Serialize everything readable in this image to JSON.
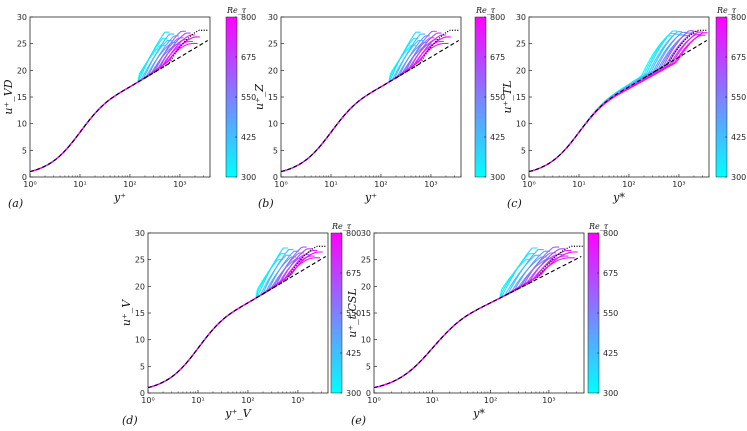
{
  "colors": {
    "low": "#00ffff",
    "high": "#ff00ff",
    "axis": "#262626",
    "reference_line": "#000000"
  },
  "chart_data": [
    {
      "type": "line",
      "panel_label": "(a)",
      "xlabel": "y⁺",
      "ylabel": "u⁺_VD",
      "xscale": "log",
      "xlim": [
        1,
        4000
      ],
      "ylim": [
        0,
        30
      ],
      "yticks": [
        "0",
        "5",
        "10",
        "15",
        "20",
        "25",
        "30"
      ],
      "xticks": [
        "10⁰",
        "10¹",
        "10²",
        "10³"
      ],
      "reference": {
        "dashed": "log-law + fit",
        "dotted": "incompressible DNS profile"
      },
      "series": {
        "count": 16,
        "re_tau_range": [
          300,
          800
        ],
        "wake_peak_range": [
          23.5,
          27.5
        ],
        "wake_peak_x": [
          400,
          2000
        ],
        "spread_start_x": 150,
        "spread_sign": 1
      },
      "colorbar": {
        "title": "Re_τ",
        "ticks": [
          "800",
          "675",
          "550",
          "425",
          "300"
        ],
        "range": [
          300,
          800
        ]
      }
    },
    {
      "type": "line",
      "panel_label": "(b)",
      "xlabel": "y⁺",
      "ylabel": "u⁺_Z",
      "xscale": "log",
      "xlim": [
        1,
        4000
      ],
      "ylim": [
        0,
        30
      ],
      "yticks": [
        "0",
        "5",
        "10",
        "15",
        "20",
        "25",
        "30"
      ],
      "xticks": [
        "10⁰",
        "10¹",
        "10²",
        "10³"
      ],
      "reference": {
        "dashed": "log-law + fit",
        "dotted": "incompressible DNS profile"
      },
      "series": {
        "count": 16,
        "re_tau_range": [
          300,
          800
        ],
        "wake_peak_range": [
          23.5,
          27.5
        ],
        "wake_peak_x": [
          400,
          2000
        ],
        "spread_start_x": 150,
        "spread_sign": 1
      },
      "colorbar": {
        "title": "Re_τ",
        "ticks": [
          "800",
          "675",
          "550",
          "425",
          "300"
        ],
        "range": [
          300,
          800
        ]
      }
    },
    {
      "type": "line",
      "panel_label": "(c)",
      "xlabel": "y*",
      "ylabel": "u⁺_TL",
      "xscale": "log",
      "xlim": [
        1,
        4000
      ],
      "ylim": [
        0,
        30
      ],
      "yticks": [
        "0",
        "5",
        "10",
        "15",
        "20",
        "25",
        "30"
      ],
      "xticks": [
        "10⁰",
        "10¹",
        "10²",
        "10³"
      ],
      "reference": {
        "dashed": "log-law + fit",
        "dotted": "incompressible DNS profile"
      },
      "series": {
        "count": 16,
        "re_tau_range": [
          300,
          800
        ],
        "wake_peak_range": [
          26.0,
          27.5
        ],
        "wake_peak_x": [
          600,
          3000
        ],
        "spread_start_x": 10,
        "spread_sign": -1
      },
      "colorbar": {
        "title": "Re_τ",
        "ticks": [
          "800",
          "675",
          "550",
          "425",
          "300"
        ],
        "range": [
          300,
          800
        ]
      }
    },
    {
      "type": "line",
      "panel_label": "(d)",
      "xlabel": "y⁺_V",
      "ylabel": "u⁺_V",
      "xscale": "log",
      "xlim": [
        1,
        4000
      ],
      "ylim": [
        0,
        30
      ],
      "yticks": [
        "0",
        "5",
        "10",
        "15",
        "20",
        "25",
        "30"
      ],
      "xticks": [
        "10⁰",
        "10¹",
        "10²",
        "10³"
      ],
      "reference": {
        "dashed": "log-law + fit",
        "dotted": "incompressible DNS profile"
      },
      "series": {
        "count": 16,
        "re_tau_range": [
          300,
          800
        ],
        "wake_peak_range": [
          24.0,
          27.5
        ],
        "wake_peak_x": [
          400,
          2500
        ],
        "spread_start_x": 150,
        "spread_sign": 1
      },
      "colorbar": {
        "title": "Re_τ",
        "ticks": [
          "800",
          "675",
          "550",
          "425",
          "300"
        ],
        "range": [
          300,
          800
        ]
      }
    },
    {
      "type": "line",
      "panel_label": "(e)",
      "xlabel": "y*",
      "ylabel": "u⁺_t,CSL",
      "xscale": "log",
      "xlim": [
        1,
        4000
      ],
      "ylim": [
        0,
        30
      ],
      "yticks": [
        "0",
        "5",
        "10",
        "15",
        "20",
        "25",
        "30"
      ],
      "xticks": [
        "10⁰",
        "10¹",
        "10²",
        "10³"
      ],
      "reference": {
        "dashed": "log-law + fit",
        "dotted": "incompressible DNS profile"
      },
      "series": {
        "count": 16,
        "re_tau_range": [
          300,
          800
        ],
        "wake_peak_range": [
          24.0,
          27.5
        ],
        "wake_peak_x": [
          400,
          2500
        ],
        "spread_start_x": 150,
        "spread_sign": 1
      },
      "colorbar": {
        "title": "Re_τ",
        "ticks": [
          "800",
          "675",
          "550",
          "425",
          "300"
        ],
        "range": [
          300,
          800
        ]
      }
    }
  ]
}
